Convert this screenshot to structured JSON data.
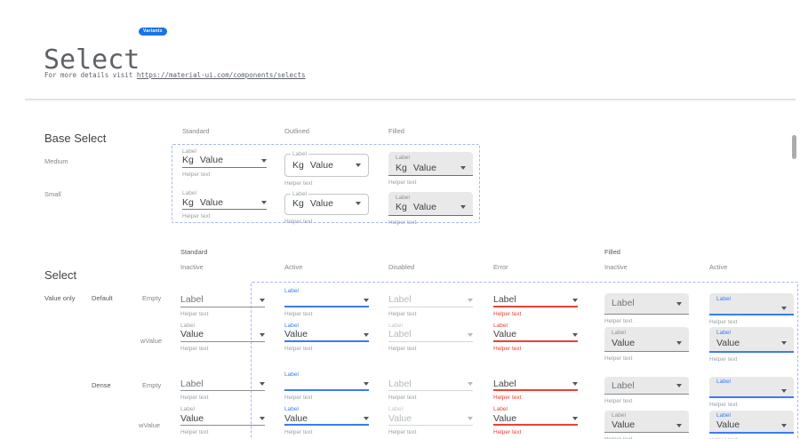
{
  "header": {
    "title": "Select",
    "badge": "Variants",
    "subtitle_prefix": "For more details visit ",
    "link_text": "https://material-ui.com/components/selects"
  },
  "strings": {
    "label": "Label",
    "value": "Value",
    "kg_prefix": "Kg",
    "helper": "Helper text"
  },
  "base_section": {
    "heading": "Base Select",
    "column_headers": [
      "Standard",
      "Outlined",
      "Filled"
    ],
    "row_labels": [
      "Medium",
      "Small"
    ]
  },
  "select_section": {
    "heading": "Select",
    "group_headers": [
      "Standard",
      "Filled"
    ],
    "state_headers": [
      "Inactive",
      "Active",
      "Disabled",
      "Error",
      "Inactive",
      "Active"
    ],
    "row_labels": {
      "value_only": "Value only",
      "default": "Default",
      "dense": "Dense",
      "empty": "Empty",
      "wvalue": "wValue"
    },
    "grid": {
      "columns": [
        {
          "variant": "standard",
          "mode": "inactive"
        },
        {
          "variant": "standard",
          "mode": "active"
        },
        {
          "variant": "standard",
          "mode": "disabled"
        },
        {
          "variant": "standard",
          "mode": "error"
        },
        {
          "variant": "filled",
          "mode": "inactive"
        },
        {
          "variant": "filled",
          "mode": "active"
        }
      ],
      "rows": [
        {
          "group": "default",
          "fill": "empty"
        },
        {
          "group": "default",
          "fill": "value"
        },
        {
          "group": "dense",
          "fill": "empty"
        },
        {
          "group": "dense",
          "fill": "value"
        }
      ],
      "value_overrides": [
        {
          "row": 1,
          "col": 2,
          "text": "Label"
        }
      ]
    }
  },
  "colors": {
    "accent": "#3b7cf0",
    "error": "#e94235",
    "dash": "#aab4f6",
    "badge": "#1a73e8",
    "filled_bg": "#e9e9e9"
  }
}
